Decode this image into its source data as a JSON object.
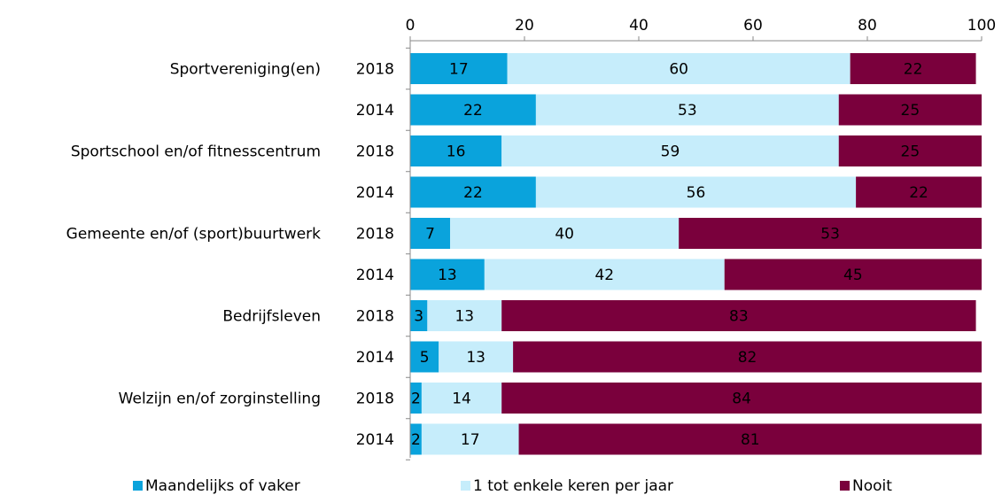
{
  "chart_data": {
    "type": "stacked-barh",
    "groups": [
      "Sportvereniging(en)",
      "Sportschool en/of fitnesscentrum",
      "Gemeente en/of (sport)buurtwerk",
      "Bedrijfsleven",
      "Welzijn en/of zorginstelling"
    ],
    "categories": [
      "2018",
      "2014",
      "2018",
      "2014",
      "2018",
      "2014",
      "2018",
      "2014",
      "2018",
      "2014"
    ],
    "series": [
      {
        "name": "Maandelijks of vaker",
        "color": "#0aa3dc",
        "values": [
          17,
          22,
          16,
          22,
          7,
          13,
          3,
          5,
          2,
          2
        ]
      },
      {
        "name": "1 tot enkele keren per jaar",
        "color": "#c6edfb",
        "values": [
          60,
          53,
          59,
          56,
          40,
          42,
          13,
          13,
          14,
          17
        ]
      },
      {
        "name": "Nooit",
        "color": "#7a003c",
        "values": [
          22,
          25,
          25,
          22,
          53,
          45,
          83,
          82,
          84,
          81
        ]
      }
    ],
    "xlim": [
      0,
      100
    ],
    "xticks": [
      0,
      20,
      40,
      60,
      80,
      100
    ],
    "legend": "bottom"
  }
}
